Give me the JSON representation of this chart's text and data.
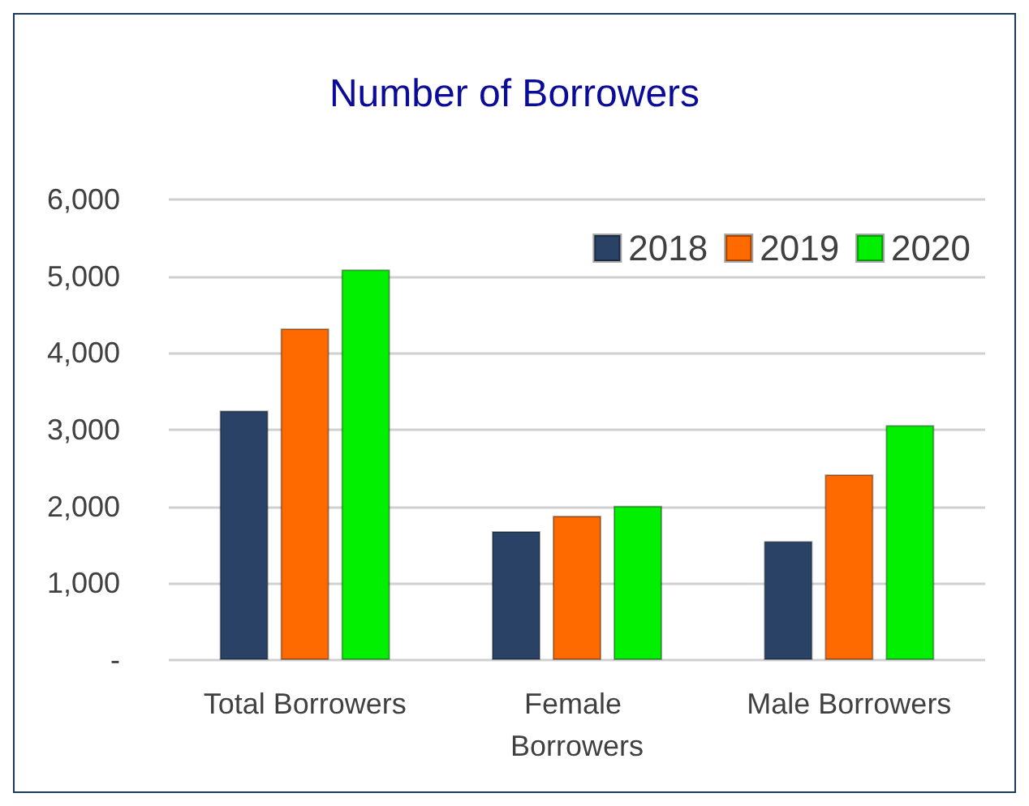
{
  "chart_data": {
    "type": "bar",
    "title": "Number of Borrowers",
    "categories": [
      "Total Borrowers",
      "Female Borrowers",
      "Male Borrowers"
    ],
    "series": [
      {
        "name": "2018",
        "color": "#2a4266",
        "values": [
          3250,
          1680,
          1550
        ]
      },
      {
        "name": "2019",
        "color": "#ff6a00",
        "values": [
          4320,
          1880,
          2420
        ]
      },
      {
        "name": "2020",
        "color": "#00f000",
        "values": [
          5090,
          2010,
          3060
        ]
      }
    ],
    "ylim": [
      0,
      6000
    ],
    "yticks": [
      {
        "value": 0,
        "label": "-"
      },
      {
        "value": 1000,
        "label": "1,000"
      },
      {
        "value": 2000,
        "label": "2,000"
      },
      {
        "value": 3000,
        "label": "3,000"
      },
      {
        "value": 4000,
        "label": "4,000"
      },
      {
        "value": 5000,
        "label": "5,000"
      },
      {
        "value": 6000,
        "label": "6,000"
      }
    ],
    "grid": "y",
    "legend": "top right"
  }
}
